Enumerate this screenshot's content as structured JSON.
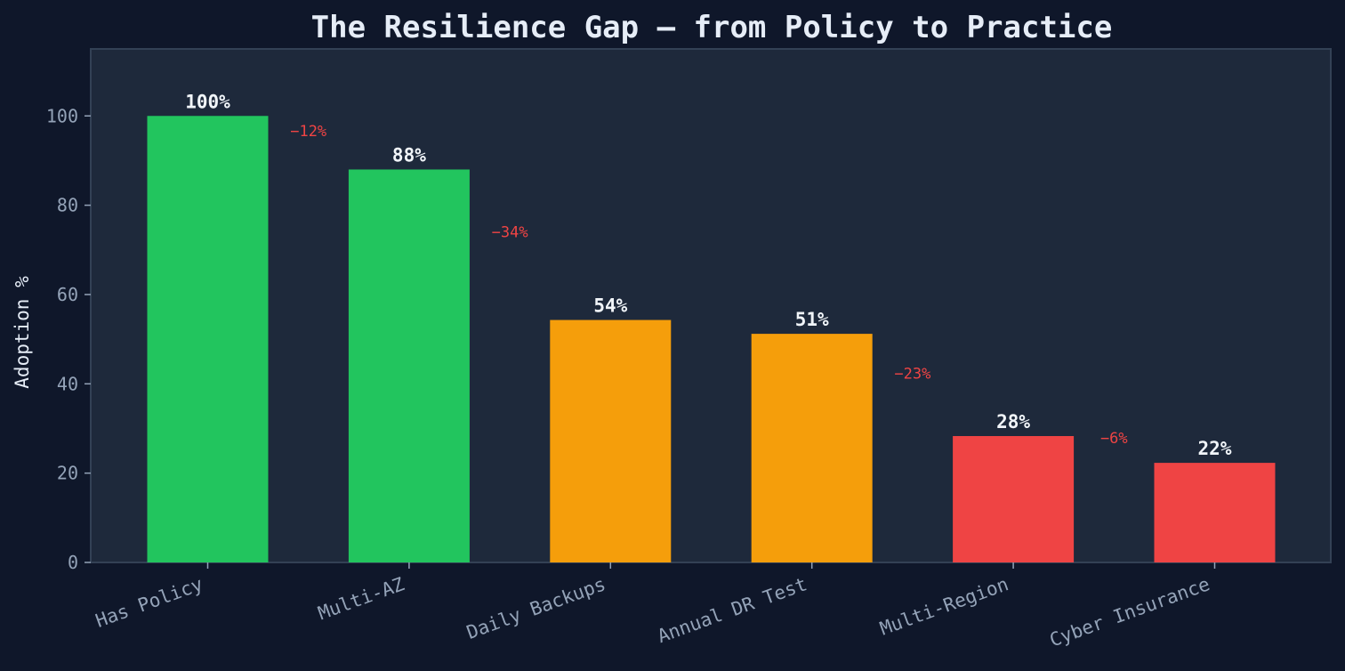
{
  "chart_data": {
    "type": "bar",
    "title": "The Resilience Gap — from Policy to Practice",
    "xlabel": "",
    "ylabel": "Adoption %",
    "ylim": [
      0,
      115
    ],
    "yticks": [
      0,
      20,
      40,
      60,
      80,
      100
    ],
    "grid": false,
    "legend": "none",
    "categories": [
      "Has Policy",
      "Multi-AZ",
      "Daily Backups",
      "Annual DR Test",
      "Multi-Region",
      "Cyber Insurance"
    ],
    "values": [
      100,
      88,
      54.3,
      51.2,
      28.3,
      22.3
    ],
    "value_labels": [
      "100%",
      "88%",
      "54%",
      "51%",
      "28%",
      "22%"
    ],
    "bar_colors": [
      "#22c55e",
      "#22c55e",
      "#f59e0b",
      "#f59e0b",
      "#ef4444",
      "#ef4444"
    ],
    "annotations": [
      {
        "between": [
          0,
          1
        ],
        "text": "−12%",
        "y": 95.5
      },
      {
        "between": [
          1,
          2
        ],
        "text": "−34%",
        "y": 72.8
      },
      {
        "between": [
          3,
          4
        ],
        "text": "−23%",
        "y": 41.2
      },
      {
        "between": [
          4,
          5
        ],
        "text": "−6%",
        "y": 26.7
      }
    ],
    "colors": {
      "background": "#0f172a",
      "plot_background": "#1e293b",
      "plot_border": "#334155",
      "annotation": "#ef4444"
    }
  }
}
